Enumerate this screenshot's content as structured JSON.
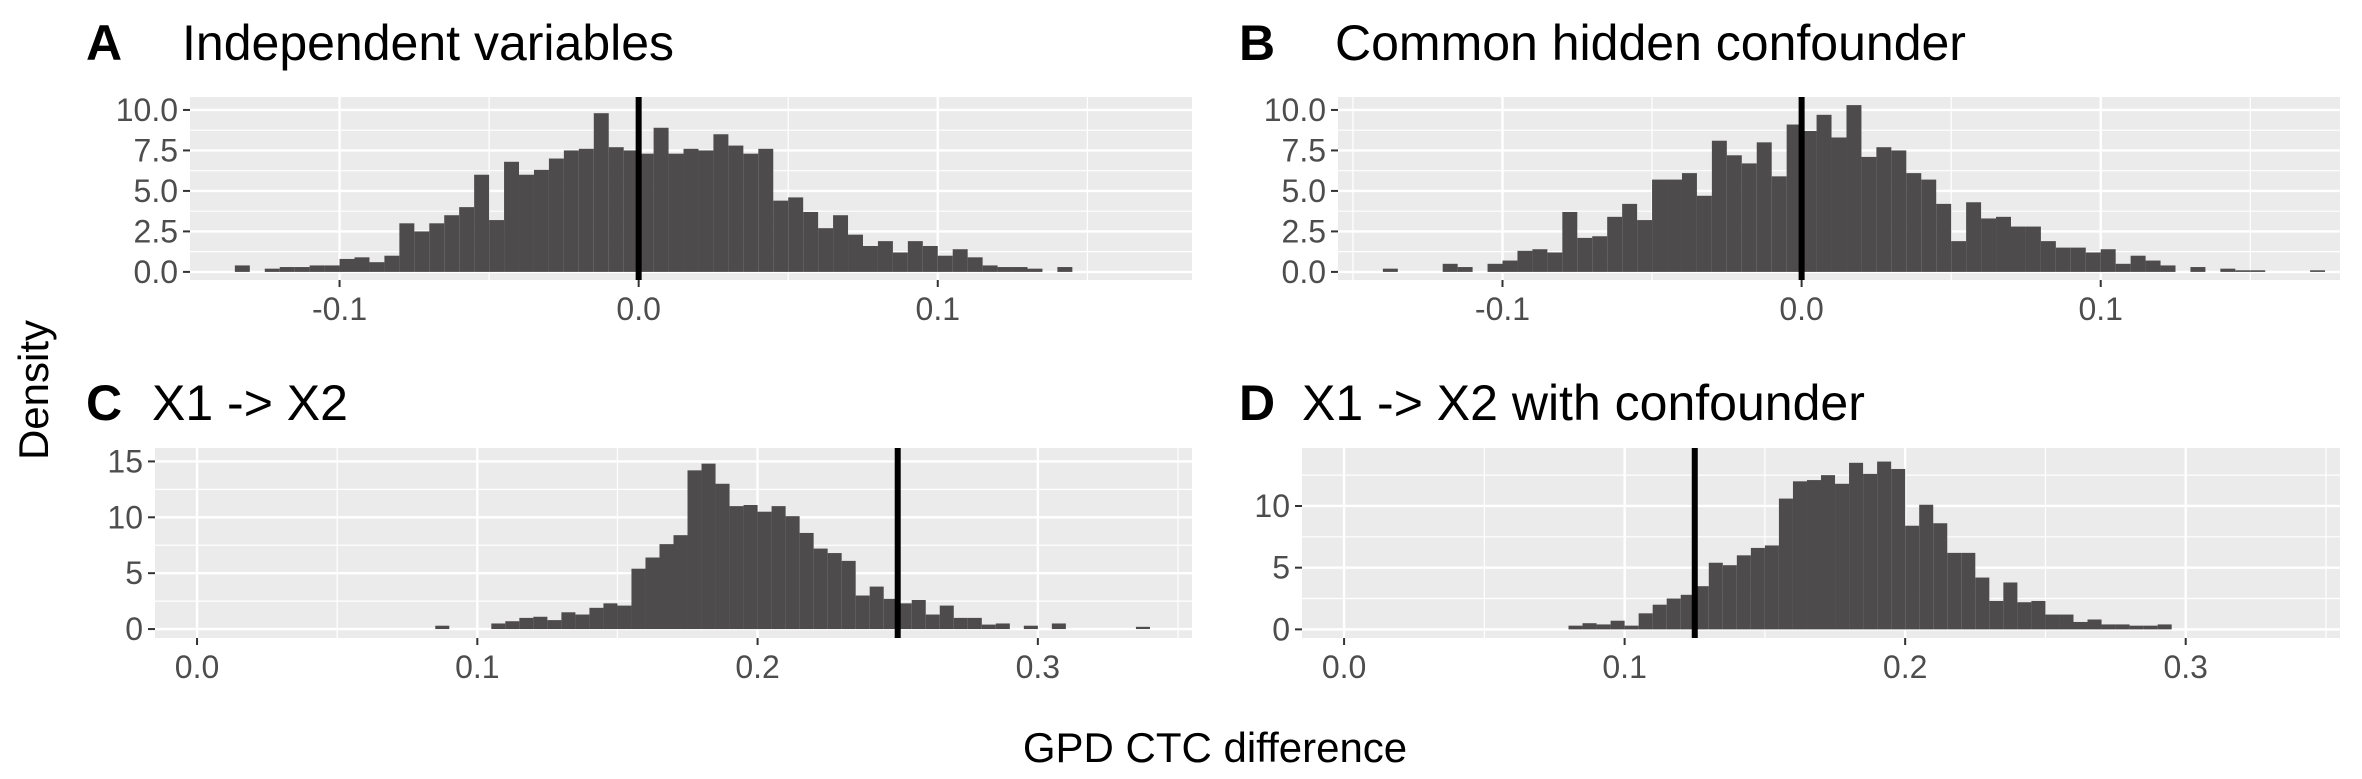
{
  "axis_titles": {
    "x": "GPD CTC difference",
    "y": "Density"
  },
  "colors": {
    "panel_bg": "#ebebeb",
    "grid": "#ffffff",
    "bar": "#4d4b4c",
    "vline": "#000000",
    "tick_text": "#4d4d4d"
  },
  "chart_data": [
    {
      "type": "bar",
      "panel": "A",
      "title": "Independent variables",
      "xlim": [
        -0.15,
        0.185
      ],
      "ylim": [
        -0.5,
        10.8
      ],
      "xticks": [
        -0.1,
        0.0,
        0.1
      ],
      "xtick_labels": [
        "-0.1",
        "0.0",
        "0.1"
      ],
      "yticks": [
        0,
        2.5,
        5,
        7.5,
        10
      ],
      "ytick_labels": [
        "0.0",
        "2.5",
        "5.0",
        "7.5",
        "10.0"
      ],
      "vline": 0.0,
      "bin_width": 0.005,
      "bins": [
        [
          -0.135,
          0.4
        ],
        [
          -0.125,
          0.2
        ],
        [
          -0.12,
          0.3
        ],
        [
          -0.115,
          0.3
        ],
        [
          -0.11,
          0.4
        ],
        [
          -0.105,
          0.4
        ],
        [
          -0.1,
          0.8
        ],
        [
          -0.095,
          0.9
        ],
        [
          -0.09,
          0.6
        ],
        [
          -0.085,
          1.0
        ],
        [
          -0.08,
          3.0
        ],
        [
          -0.075,
          2.5
        ],
        [
          -0.07,
          3.0
        ],
        [
          -0.065,
          3.5
        ],
        [
          -0.06,
          4.0
        ],
        [
          -0.055,
          6.0
        ],
        [
          -0.05,
          3.2
        ],
        [
          -0.045,
          6.8
        ],
        [
          -0.04,
          6.0
        ],
        [
          -0.035,
          6.3
        ],
        [
          -0.03,
          7.0
        ],
        [
          -0.025,
          7.5
        ],
        [
          -0.02,
          7.6
        ],
        [
          -0.015,
          9.8
        ],
        [
          -0.01,
          7.7
        ],
        [
          -0.005,
          7.5
        ],
        [
          0.0,
          7.3
        ],
        [
          0.005,
          8.9
        ],
        [
          0.01,
          7.3
        ],
        [
          0.015,
          7.6
        ],
        [
          0.02,
          7.5
        ],
        [
          0.025,
          8.5
        ],
        [
          0.03,
          7.8
        ],
        [
          0.035,
          7.3
        ],
        [
          0.04,
          7.6
        ],
        [
          0.045,
          4.4
        ],
        [
          0.05,
          4.6
        ],
        [
          0.055,
          3.7
        ],
        [
          0.06,
          2.7
        ],
        [
          0.065,
          3.5
        ],
        [
          0.07,
          2.3
        ],
        [
          0.075,
          1.6
        ],
        [
          0.08,
          1.9
        ],
        [
          0.085,
          1.2
        ],
        [
          0.09,
          1.9
        ],
        [
          0.095,
          1.6
        ],
        [
          0.1,
          1.0
        ],
        [
          0.105,
          1.4
        ],
        [
          0.11,
          0.9
        ],
        [
          0.115,
          0.4
        ],
        [
          0.12,
          0.3
        ],
        [
          0.125,
          0.3
        ],
        [
          0.13,
          0.2
        ],
        [
          0.14,
          0.3
        ]
      ]
    },
    {
      "type": "bar",
      "panel": "B",
      "title": "Common hidden confounder",
      "xlim": [
        -0.155,
        0.18
      ],
      "ylim": [
        -0.5,
        10.8
      ],
      "xticks": [
        -0.1,
        0.0,
        0.1
      ],
      "xtick_labels": [
        "-0.1",
        "0.0",
        "0.1"
      ],
      "yticks": [
        0,
        2.5,
        5,
        7.5,
        10
      ],
      "ytick_labels": [
        "0.0",
        "2.5",
        "5.0",
        "7.5",
        "10.0"
      ],
      "vline": 0.0,
      "bin_width": 0.005,
      "bins": [
        [
          -0.14,
          0.2
        ],
        [
          -0.12,
          0.5
        ],
        [
          -0.115,
          0.3
        ],
        [
          -0.105,
          0.5
        ],
        [
          -0.1,
          0.7
        ],
        [
          -0.095,
          1.3
        ],
        [
          -0.09,
          1.4
        ],
        [
          -0.085,
          1.2
        ],
        [
          -0.08,
          3.7
        ],
        [
          -0.075,
          2.1
        ],
        [
          -0.07,
          2.2
        ],
        [
          -0.065,
          3.4
        ],
        [
          -0.06,
          4.2
        ],
        [
          -0.055,
          3.2
        ],
        [
          -0.05,
          5.7
        ],
        [
          -0.045,
          5.7
        ],
        [
          -0.04,
          6.1
        ],
        [
          -0.035,
          4.7
        ],
        [
          -0.03,
          8.1
        ],
        [
          -0.025,
          7.2
        ],
        [
          -0.02,
          6.7
        ],
        [
          -0.015,
          8.0
        ],
        [
          -0.01,
          5.9
        ],
        [
          -0.005,
          9.1
        ],
        [
          0.0,
          8.7
        ],
        [
          0.005,
          9.7
        ],
        [
          0.01,
          8.3
        ],
        [
          0.015,
          10.3
        ],
        [
          0.02,
          7.1
        ],
        [
          0.025,
          7.7
        ],
        [
          0.03,
          7.5
        ],
        [
          0.035,
          6.1
        ],
        [
          0.04,
          5.7
        ],
        [
          0.045,
          4.2
        ],
        [
          0.05,
          1.9
        ],
        [
          0.055,
          4.3
        ],
        [
          0.06,
          3.3
        ],
        [
          0.065,
          3.4
        ],
        [
          0.07,
          2.8
        ],
        [
          0.075,
          2.8
        ],
        [
          0.08,
          1.9
        ],
        [
          0.085,
          1.5
        ],
        [
          0.09,
          1.5
        ],
        [
          0.095,
          1.2
        ],
        [
          0.1,
          1.4
        ],
        [
          0.105,
          0.5
        ],
        [
          0.11,
          1.0
        ],
        [
          0.115,
          0.7
        ],
        [
          0.12,
          0.4
        ],
        [
          0.13,
          0.3
        ],
        [
          0.14,
          0.2
        ],
        [
          0.145,
          0.1
        ],
        [
          0.15,
          0.1
        ],
        [
          0.17,
          0.1
        ]
      ]
    },
    {
      "type": "bar",
      "panel": "C",
      "title": "X1 -> X2",
      "xlim": [
        -0.015,
        0.355
      ],
      "ylim": [
        -0.8,
        16.2
      ],
      "xticks": [
        0.0,
        0.1,
        0.2,
        0.3
      ],
      "xtick_labels": [
        "0.0",
        "0.1",
        "0.2",
        "0.3"
      ],
      "yticks": [
        0,
        5,
        10,
        15
      ],
      "ytick_labels": [
        "0",
        "5",
        "10",
        "15"
      ],
      "vline": 0.25,
      "bin_width": 0.005,
      "bins": [
        [
          0.085,
          0.3
        ],
        [
          0.105,
          0.5
        ],
        [
          0.11,
          0.7
        ],
        [
          0.115,
          1.0
        ],
        [
          0.12,
          1.1
        ],
        [
          0.125,
          0.8
        ],
        [
          0.13,
          1.5
        ],
        [
          0.135,
          1.3
        ],
        [
          0.14,
          1.9
        ],
        [
          0.145,
          2.3
        ],
        [
          0.15,
          2.1
        ],
        [
          0.155,
          5.4
        ],
        [
          0.16,
          6.4
        ],
        [
          0.165,
          7.6
        ],
        [
          0.17,
          8.4
        ],
        [
          0.175,
          14.2
        ],
        [
          0.18,
          14.8
        ],
        [
          0.185,
          13.0
        ],
        [
          0.19,
          11.0
        ],
        [
          0.195,
          11.1
        ],
        [
          0.2,
          10.5
        ],
        [
          0.205,
          11.0
        ],
        [
          0.21,
          10.1
        ],
        [
          0.215,
          8.6
        ],
        [
          0.22,
          7.2
        ],
        [
          0.225,
          6.8
        ],
        [
          0.23,
          6.1
        ],
        [
          0.235,
          3.0
        ],
        [
          0.24,
          3.8
        ],
        [
          0.245,
          2.7
        ],
        [
          0.25,
          2.3
        ],
        [
          0.255,
          2.6
        ],
        [
          0.26,
          1.3
        ],
        [
          0.265,
          2.1
        ],
        [
          0.27,
          1.0
        ],
        [
          0.275,
          1.0
        ],
        [
          0.28,
          0.4
        ],
        [
          0.285,
          0.5
        ],
        [
          0.295,
          0.3
        ],
        [
          0.305,
          0.5
        ],
        [
          0.335,
          0.2
        ]
      ]
    },
    {
      "type": "bar",
      "panel": "D",
      "title": "X1 -> X2 with confounder",
      "xlim": [
        -0.015,
        0.355
      ],
      "ylim": [
        -0.7,
        14.7
      ],
      "xticks": [
        0.0,
        0.1,
        0.2,
        0.3
      ],
      "xtick_labels": [
        "0.0",
        "0.1",
        "0.2",
        "0.3"
      ],
      "yticks": [
        0,
        5,
        10
      ],
      "ytick_labels": [
        "0",
        "5",
        "10"
      ],
      "vline": 0.125,
      "bin_width": 0.005,
      "bins": [
        [
          0.08,
          0.3
        ],
        [
          0.085,
          0.5
        ],
        [
          0.09,
          0.4
        ],
        [
          0.095,
          0.7
        ],
        [
          0.1,
          0.3
        ],
        [
          0.105,
          1.3
        ],
        [
          0.11,
          2.0
        ],
        [
          0.115,
          2.5
        ],
        [
          0.12,
          2.8
        ],
        [
          0.125,
          3.5
        ],
        [
          0.13,
          5.4
        ],
        [
          0.135,
          5.2
        ],
        [
          0.14,
          6.0
        ],
        [
          0.145,
          6.6
        ],
        [
          0.15,
          6.8
        ],
        [
          0.155,
          10.6
        ],
        [
          0.16,
          12.0
        ],
        [
          0.165,
          12.1
        ],
        [
          0.17,
          12.5
        ],
        [
          0.175,
          11.8
        ],
        [
          0.18,
          13.5
        ],
        [
          0.185,
          12.6
        ],
        [
          0.19,
          13.6
        ],
        [
          0.195,
          13.0
        ],
        [
          0.2,
          8.4
        ],
        [
          0.205,
          10.1
        ],
        [
          0.21,
          8.6
        ],
        [
          0.215,
          6.2
        ],
        [
          0.22,
          6.2
        ],
        [
          0.225,
          4.2
        ],
        [
          0.23,
          2.3
        ],
        [
          0.235,
          3.8
        ],
        [
          0.24,
          2.2
        ],
        [
          0.245,
          2.3
        ],
        [
          0.25,
          1.2
        ],
        [
          0.255,
          1.2
        ],
        [
          0.26,
          0.6
        ],
        [
          0.265,
          0.8
        ],
        [
          0.27,
          0.4
        ],
        [
          0.275,
          0.4
        ],
        [
          0.28,
          0.3
        ],
        [
          0.285,
          0.3
        ],
        [
          0.29,
          0.4
        ]
      ]
    }
  ]
}
